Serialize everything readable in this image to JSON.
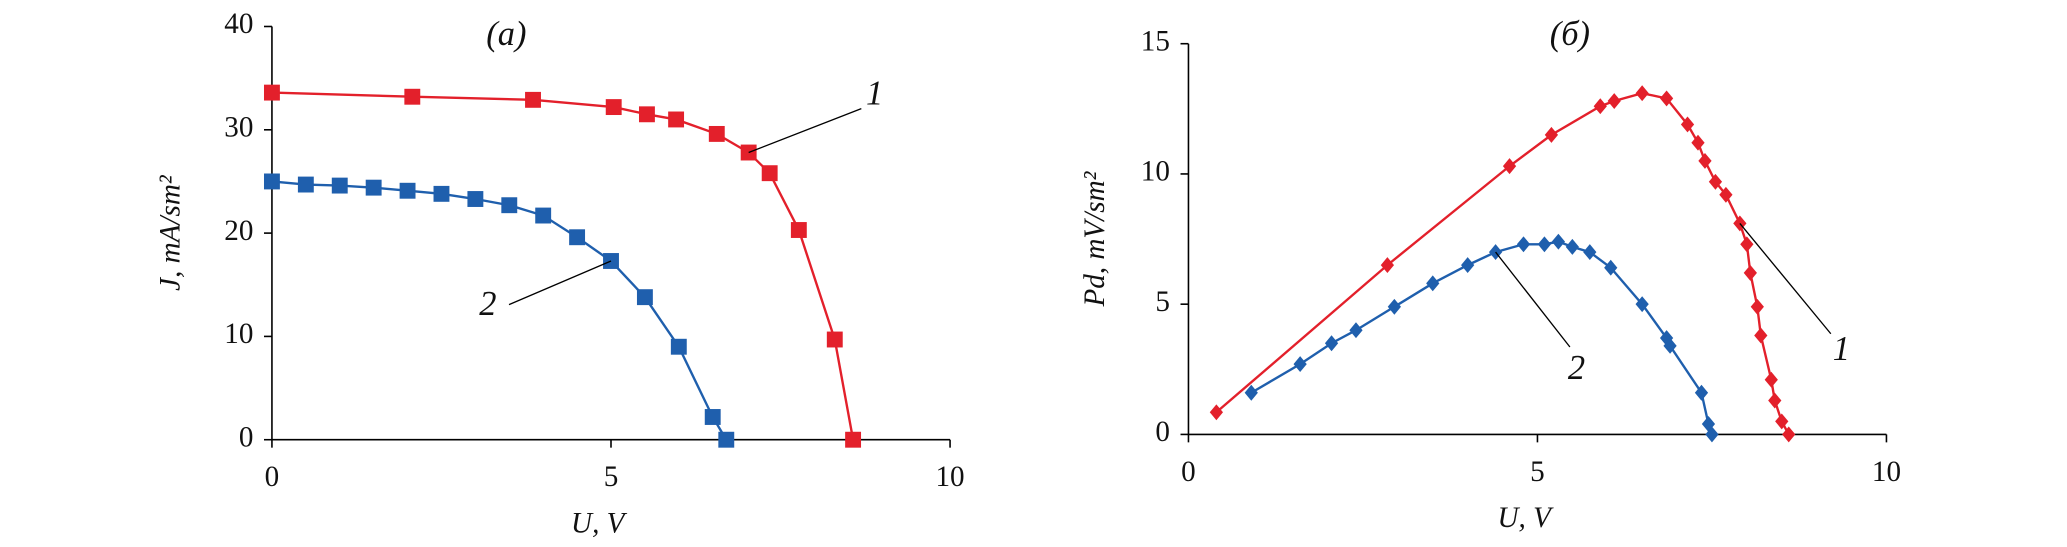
{
  "chart_data": [
    {
      "type": "line",
      "title": "(a)",
      "x_label": "U, V",
      "y_label": "J, mA/sm²",
      "marker": "square",
      "xlim": [
        0,
        10
      ],
      "xticks": [
        0,
        5,
        10
      ],
      "ylim": [
        0,
        40
      ],
      "yticks": [
        0,
        10,
        20,
        30,
        40
      ],
      "series": [
        {
          "name": "1",
          "color": "#e3202b",
          "x": [
            0,
            2.07,
            3.85,
            5.04,
            5.53,
            5.96,
            6.56,
            7.03,
            7.34,
            7.77,
            8.3,
            8.57
          ],
          "values": [
            33.6,
            33.2,
            32.9,
            32.2,
            31.5,
            31.0,
            29.6,
            27.8,
            25.8,
            20.3,
            9.7,
            0
          ]
        },
        {
          "name": "2",
          "color": "#1f5fad",
          "x": [
            0,
            0.5,
            1.0,
            1.5,
            2.0,
            2.5,
            3.0,
            3.5,
            4.0,
            4.5,
            5.0,
            5.5,
            6.0,
            6.5,
            6.7
          ],
          "values": [
            25.0,
            24.7,
            24.6,
            24.4,
            24.1,
            23.8,
            23.3,
            22.7,
            21.7,
            19.6,
            17.3,
            13.8,
            9.0,
            2.2,
            0
          ]
        }
      ]
    },
    {
      "type": "line",
      "title": "(б)",
      "x_label": "U, V",
      "y_label": "Pd, mV/sm²",
      "marker": "diamond",
      "xlim": [
        0,
        10
      ],
      "xticks": [
        0,
        5,
        10
      ],
      "ylim": [
        0,
        15
      ],
      "yticks": [
        0,
        5,
        10,
        15
      ],
      "series": [
        {
          "name": "1",
          "color": "#e3202b",
          "x": [
            0.4,
            2.85,
            4.6,
            5.2,
            5.9,
            6.1,
            6.5,
            6.85,
            7.15,
            7.3,
            7.4,
            7.55,
            7.7,
            7.9,
            8.0,
            8.05,
            8.15,
            8.2,
            8.35,
            8.4,
            8.5,
            8.6
          ],
          "values": [
            0.85,
            6.5,
            10.3,
            11.5,
            12.6,
            12.8,
            13.1,
            12.9,
            11.9,
            11.2,
            10.5,
            9.7,
            9.2,
            8.1,
            7.3,
            6.2,
            4.9,
            3.8,
            2.1,
            1.3,
            0.5,
            0
          ]
        },
        {
          "name": "2",
          "color": "#1f5fad",
          "x": [
            0.9,
            1.6,
            2.05,
            2.4,
            2.95,
            3.5,
            4.0,
            4.4,
            4.8,
            5.1,
            5.3,
            5.5,
            5.75,
            6.05,
            6.5,
            6.85,
            6.9,
            7.35,
            7.45,
            7.5
          ],
          "values": [
            1.6,
            2.7,
            3.5,
            4.0,
            4.9,
            5.8,
            6.5,
            7.0,
            7.3,
            7.3,
            7.4,
            7.2,
            7.0,
            6.4,
            5.0,
            3.7,
            3.4,
            1.6,
            0.4,
            0
          ]
        }
      ]
    }
  ]
}
